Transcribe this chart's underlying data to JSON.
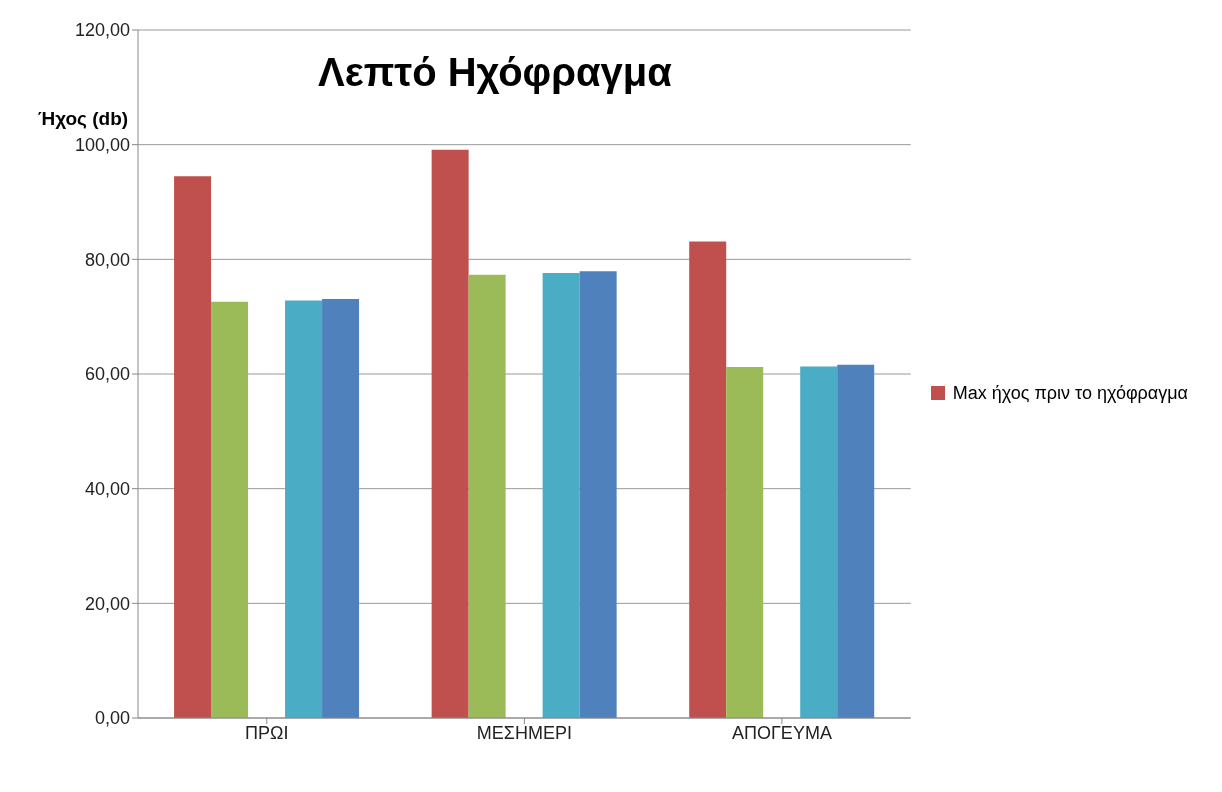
{
  "chart_data": {
    "type": "bar",
    "title": "Λεπτό Ηχόφραγμα",
    "ylabel": "Ήχος (db)",
    "categories": [
      "ΠΡΩΙ",
      "ΜΕΣΗΜΕΡΙ",
      "ΑΠΟΓΕΥΜΑ"
    ],
    "series": [
      {
        "name": "Max ήχος πριν το ηχόφραγμα",
        "color": "#c0504d",
        "values": [
          94.5,
          99.1,
          83.1
        ]
      },
      {
        "color": "#9bbb59",
        "values": [
          72.6,
          77.3,
          61.2
        ]
      },
      {
        "color": "#8064a2",
        "values": [
          null,
          null,
          null
        ]
      },
      {
        "color": "#4bacc6",
        "values": [
          72.8,
          77.6,
          61.3
        ]
      },
      {
        "color": "#4f81bd",
        "values": [
          73.1,
          77.9,
          61.6
        ]
      }
    ],
    "ylim": [
      0,
      120
    ],
    "yticks": [
      {
        "value": 0,
        "label": "0,00"
      },
      {
        "value": 20,
        "label": "20,00"
      },
      {
        "value": 40,
        "label": "40,00"
      },
      {
        "value": 60,
        "label": "60,00"
      },
      {
        "value": 80,
        "label": "80,00"
      },
      {
        "value": 100,
        "label": "100,00"
      },
      {
        "value": 120,
        "label": "120,00"
      }
    ],
    "grid": "y",
    "legend": "right"
  }
}
